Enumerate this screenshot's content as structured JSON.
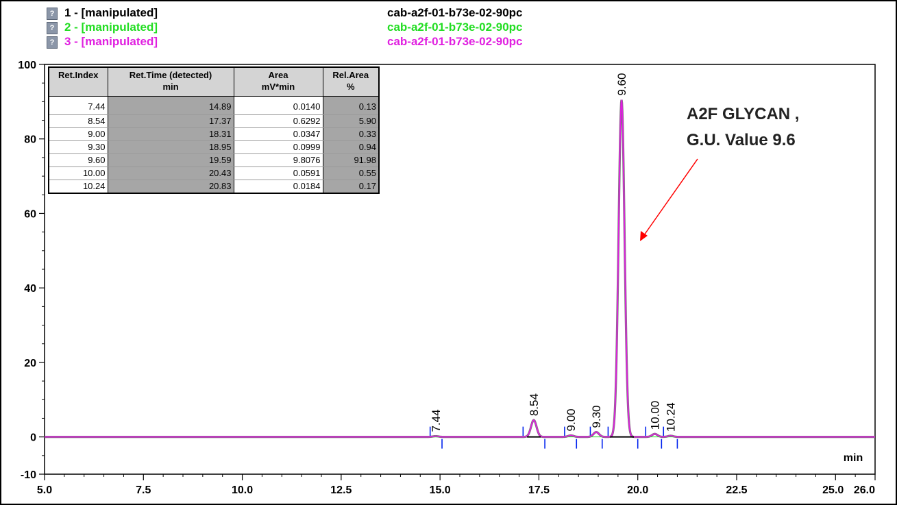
{
  "legend": [
    {
      "name": "1 -  [manipulated]",
      "file": "cab-a2f-01-b73e-02-90pc",
      "color": "#000000"
    },
    {
      "name": "2 -  [manipulated]",
      "file": "cab-a2f-01-b73e-02-90pc",
      "color": "#22dd22"
    },
    {
      "name": "3 -  [manipulated]",
      "file": "cab-a2f-01-b73e-02-90pc",
      "color": "#e020e0"
    }
  ],
  "table": {
    "headers": [
      {
        "line1": "Ret.Index",
        "line2": ""
      },
      {
        "line1": "Ret.Time (detected)",
        "line2": "min"
      },
      {
        "line1": "Area",
        "line2": "mV*min"
      },
      {
        "line1": "Rel.Area",
        "line2": "%"
      }
    ],
    "rows": [
      [
        "7.44",
        "14.89",
        "0.0140",
        "0.13"
      ],
      [
        "8.54",
        "17.37",
        "0.6292",
        "5.90"
      ],
      [
        "9.00",
        "18.31",
        "0.0347",
        "0.33"
      ],
      [
        "9.30",
        "18.95",
        "0.0999",
        "0.94"
      ],
      [
        "9.60",
        "19.59",
        "9.8076",
        "91.98"
      ],
      [
        "10.00",
        "20.43",
        "0.0591",
        "0.55"
      ],
      [
        "10.24",
        "20.83",
        "0.0184",
        "0.17"
      ]
    ]
  },
  "annotation": {
    "line1": "A2F GLYCAN ,",
    "line2": "G.U. Value 9.6",
    "arrow_color": "#ff0000"
  },
  "chart_data": {
    "type": "line",
    "xlabel": "min",
    "ylabel": "",
    "xlim": [
      5.0,
      26.0
    ],
    "ylim": [
      -10,
      100
    ],
    "x_ticks": [
      "5.0",
      "7.5",
      "10.0",
      "12.5",
      "15.0",
      "17.5",
      "20.0",
      "22.5",
      "25.0",
      "26.0"
    ],
    "y_ticks": [
      "100",
      "80",
      "60",
      "40",
      "20",
      "0",
      "-10"
    ],
    "peaks": [
      {
        "label": "7.44",
        "time": 14.89,
        "height": 0.2
      },
      {
        "label": "8.54",
        "time": 17.37,
        "height": 4.5
      },
      {
        "label": "9.00",
        "time": 18.31,
        "height": 0.4
      },
      {
        "label": "9.30",
        "time": 18.95,
        "height": 1.3
      },
      {
        "label": "9.60",
        "time": 19.59,
        "height": 90.5
      },
      {
        "label": "10.00",
        "time": 20.43,
        "height": 0.8
      },
      {
        "label": "10.24",
        "time": 20.83,
        "height": 0.3
      }
    ],
    "integration_marks_upper": [
      14.75,
      17.1,
      18.15,
      18.8,
      19.25,
      20.2,
      20.65
    ],
    "integration_marks_lower": [
      15.05,
      17.65,
      18.45,
      19.1,
      20.0,
      20.6,
      21.0
    ],
    "colors": {
      "trace": "#e020e0",
      "trace_under": "#777777",
      "marks": "#0022ee",
      "baseline": "#000000"
    }
  }
}
